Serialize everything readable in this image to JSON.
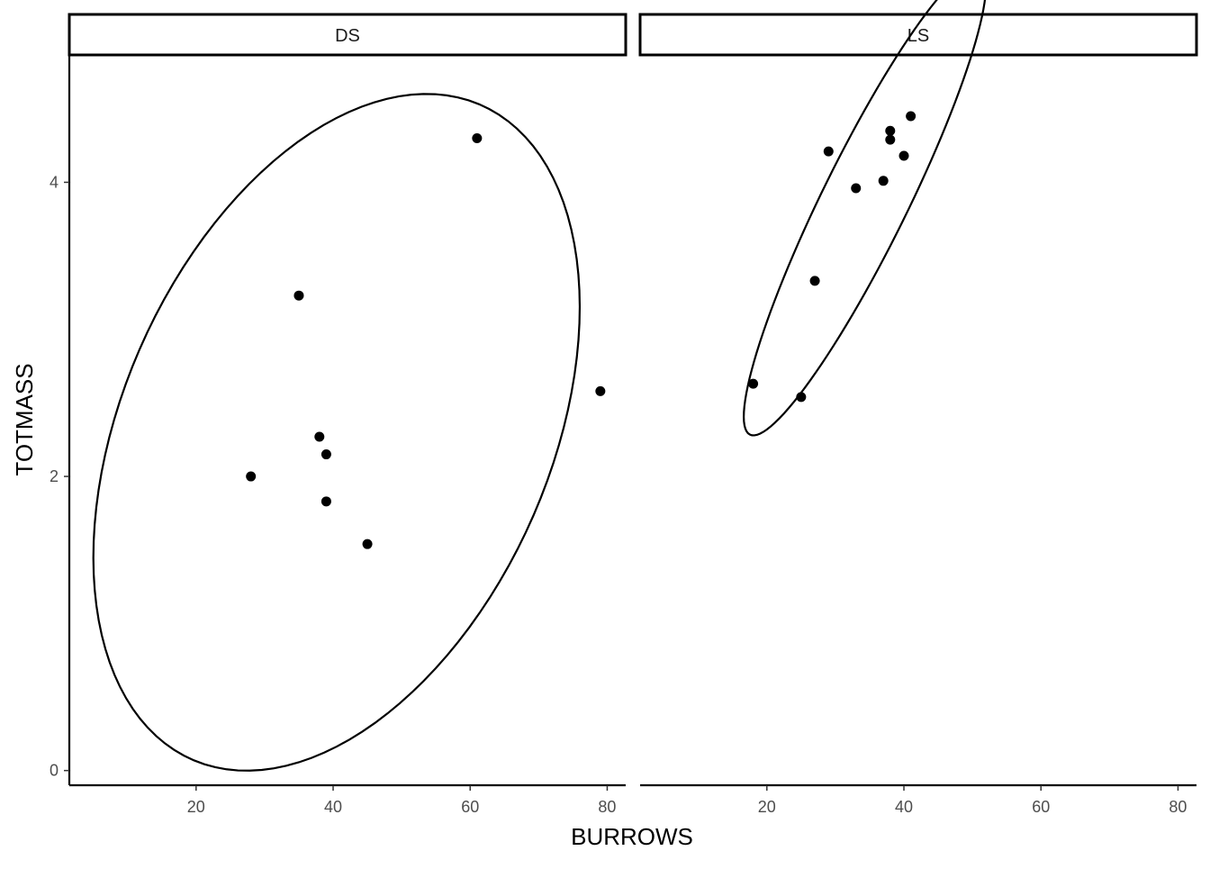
{
  "chart_data": {
    "type": "scatter",
    "xlabel": "BURROWS",
    "ylabel": "TOTMASS",
    "xlim": [
      1.5,
      82.7
    ],
    "ylim": [
      -0.1,
      4.86
    ],
    "x_ticks": [
      20,
      40,
      60,
      80
    ],
    "y_ticks": [
      0,
      2,
      4
    ],
    "grid": false,
    "legend": "none",
    "point_color": "#000000",
    "panels": [
      {
        "label": "DS",
        "points": [
          {
            "x": 28,
            "y": 2.0
          },
          {
            "x": 35,
            "y": 3.23
          },
          {
            "x": 38,
            "y": 2.27
          },
          {
            "x": 39,
            "y": 2.15
          },
          {
            "x": 39,
            "y": 1.83
          },
          {
            "x": 45,
            "y": 1.54
          },
          {
            "x": 61,
            "y": 4.3
          },
          {
            "x": 79,
            "y": 2.58
          }
        ],
        "ellipse": {
          "center": [
            40.5,
            2.3
          ],
          "sd_x": 14.5,
          "sd_y": 0.94,
          "r": 0.37,
          "level": 0.95
        }
      },
      {
        "label": "LS",
        "points": [
          {
            "x": 18,
            "y": 2.63
          },
          {
            "x": 25,
            "y": 2.54
          },
          {
            "x": 27,
            "y": 3.33
          },
          {
            "x": 29,
            "y": 4.21
          },
          {
            "x": 33,
            "y": 3.96
          },
          {
            "x": 37,
            "y": 4.01
          },
          {
            "x": 38,
            "y": 4.35
          },
          {
            "x": 38,
            "y": 4.29
          },
          {
            "x": 40,
            "y": 4.18
          },
          {
            "x": 41,
            "y": 4.45
          }
        ],
        "ellipse": {
          "center": [
            34.3,
            3.87
          ],
          "sd_x": 7.22,
          "sd_y": 0.65,
          "r": 0.92,
          "level": 0.95
        }
      }
    ]
  }
}
